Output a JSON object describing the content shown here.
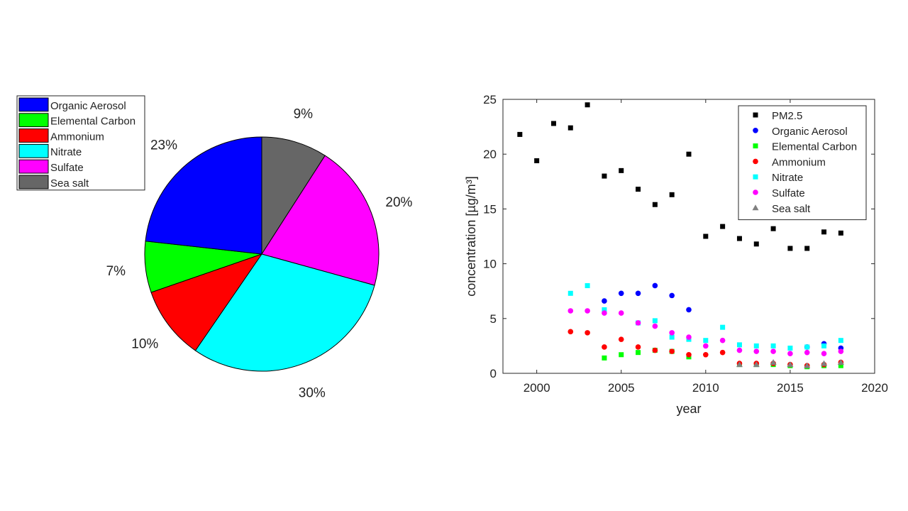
{
  "chart_data": [
    {
      "type": "pie",
      "legend_placement": "top-left",
      "slices": [
        {
          "label": "Organic Aerosol",
          "value": 23,
          "label_text": "23%",
          "color": "#0000ff"
        },
        {
          "label": "Elemental Carbon",
          "value": 7,
          "label_text": "7%",
          "color": "#00ff00"
        },
        {
          "label": "Ammonium",
          "value": 10,
          "label_text": "10%",
          "color": "#ff0000"
        },
        {
          "label": "Nitrate",
          "value": 30,
          "label_text": "30%",
          "color": "#00ffff"
        },
        {
          "label": "Sulfate",
          "value": 20,
          "label_text": "20%",
          "color": "#ff00ff"
        },
        {
          "label": "Sea salt",
          "value": 9,
          "label_text": "9%",
          "color": "#666666"
        }
      ]
    },
    {
      "type": "scatter",
      "xlabel": "year",
      "ylabel": "concentration [µg/m³]",
      "xlim": [
        1998,
        2020
      ],
      "ylim": [
        0,
        25
      ],
      "xticks": [
        "2000",
        "2005",
        "2010",
        "2015",
        "2020"
      ],
      "yticks": [
        "0",
        "5",
        "10",
        "15",
        "20",
        "25"
      ],
      "grid": false,
      "legend_placement": "top-right",
      "series": [
        {
          "name": "PM2.5",
          "marker": "square",
          "color": "#000000",
          "points": [
            [
              1999,
              21.8
            ],
            [
              2000,
              19.4
            ],
            [
              2001,
              22.8
            ],
            [
              2002,
              22.4
            ],
            [
              2003,
              24.5
            ],
            [
              2004,
              18
            ],
            [
              2005,
              18.5
            ],
            [
              2006,
              16.8
            ],
            [
              2007,
              15.4
            ],
            [
              2008,
              16.3
            ],
            [
              2009,
              20
            ],
            [
              2010,
              12.5
            ],
            [
              2011,
              13.4
            ],
            [
              2012,
              12.3
            ],
            [
              2013,
              11.8
            ],
            [
              2014,
              13.2
            ],
            [
              2015,
              11.4
            ],
            [
              2016,
              11.4
            ],
            [
              2017,
              12.9
            ],
            [
              2018,
              12.8
            ]
          ]
        },
        {
          "name": "Organic Aerosol",
          "marker": "circle",
          "color": "#0000ff",
          "points": [
            [
              2004,
              6.6
            ],
            [
              2005,
              7.3
            ],
            [
              2006,
              7.3
            ],
            [
              2007,
              8.0
            ],
            [
              2008,
              7.1
            ],
            [
              2009,
              5.8
            ],
            [
              2016,
              2.4
            ],
            [
              2017,
              2.7
            ],
            [
              2018,
              2.3
            ]
          ]
        },
        {
          "name": "Elemental Carbon",
          "marker": "square",
          "color": "#00ff00",
          "points": [
            [
              2004,
              1.4
            ],
            [
              2005,
              1.7
            ],
            [
              2006,
              1.9
            ],
            [
              2007,
              2.1
            ],
            [
              2008,
              2.0
            ],
            [
              2009,
              1.5
            ],
            [
              2012,
              0.8
            ],
            [
              2013,
              0.8
            ],
            [
              2014,
              0.8
            ],
            [
              2015,
              0.7
            ],
            [
              2016,
              0.6
            ],
            [
              2017,
              0.7
            ],
            [
              2018,
              0.7
            ]
          ]
        },
        {
          "name": "Ammonium",
          "marker": "circle",
          "color": "#ff0000",
          "points": [
            [
              2002,
              3.8
            ],
            [
              2003,
              3.7
            ],
            [
              2004,
              2.4
            ],
            [
              2005,
              3.1
            ],
            [
              2006,
              2.4
            ],
            [
              2007,
              2.1
            ],
            [
              2008,
              2.0
            ],
            [
              2009,
              1.7
            ],
            [
              2010,
              1.7
            ],
            [
              2011,
              1.9
            ],
            [
              2012,
              0.9
            ],
            [
              2013,
              0.9
            ],
            [
              2014,
              0.9
            ],
            [
              2015,
              0.8
            ],
            [
              2016,
              0.7
            ],
            [
              2017,
              0.8
            ],
            [
              2018,
              1.0
            ]
          ]
        },
        {
          "name": "Nitrate",
          "marker": "square",
          "color": "#00ffff",
          "points": [
            [
              2002,
              7.3
            ],
            [
              2003,
              8.0
            ],
            [
              2004,
              5.8
            ],
            [
              2006,
              4.6
            ],
            [
              2007,
              4.8
            ],
            [
              2008,
              3.3
            ],
            [
              2009,
              3.1
            ],
            [
              2010,
              3.0
            ],
            [
              2011,
              4.2
            ],
            [
              2012,
              2.6
            ],
            [
              2013,
              2.5
            ],
            [
              2014,
              2.5
            ],
            [
              2015,
              2.3
            ],
            [
              2016,
              2.4
            ],
            [
              2017,
              2.5
            ],
            [
              2018,
              3.0
            ]
          ]
        },
        {
          "name": "Sulfate",
          "marker": "circle",
          "color": "#ff00ff",
          "points": [
            [
              2002,
              5.7
            ],
            [
              2003,
              5.7
            ],
            [
              2004,
              5.5
            ],
            [
              2005,
              5.5
            ],
            [
              2006,
              4.6
            ],
            [
              2007,
              4.3
            ],
            [
              2008,
              3.7
            ],
            [
              2009,
              3.3
            ],
            [
              2010,
              2.5
            ],
            [
              2011,
              3.0
            ],
            [
              2012,
              2.1
            ],
            [
              2013,
              2.0
            ],
            [
              2014,
              2.0
            ],
            [
              2015,
              1.8
            ],
            [
              2016,
              1.9
            ],
            [
              2017,
              1.8
            ],
            [
              2018,
              2.0
            ]
          ]
        },
        {
          "name": "Sea salt",
          "marker": "triangle",
          "color": "#808080",
          "points": [
            [
              2012,
              0.8
            ],
            [
              2013,
              0.8
            ],
            [
              2014,
              1.0
            ],
            [
              2015,
              0.8
            ],
            [
              2016,
              0.7
            ],
            [
              2017,
              0.9
            ],
            [
              2018,
              1.0
            ]
          ]
        }
      ]
    }
  ]
}
